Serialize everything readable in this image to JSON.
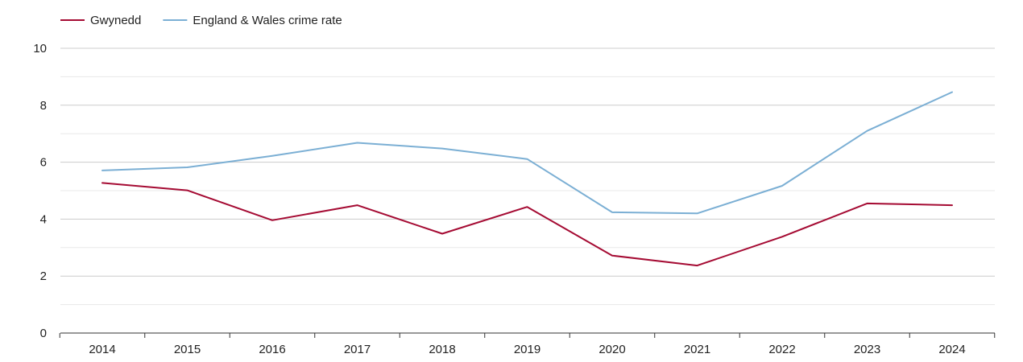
{
  "chart_data": {
    "type": "line",
    "title": "",
    "xlabel": "",
    "ylabel": "",
    "categories": [
      "2014",
      "2015",
      "2016",
      "2017",
      "2018",
      "2019",
      "2020",
      "2021",
      "2022",
      "2023",
      "2024"
    ],
    "ylim": [
      0,
      10
    ],
    "yticks": [
      0,
      2,
      4,
      6,
      8,
      10
    ],
    "grid": true,
    "legend_position": "top-left",
    "series": [
      {
        "name": "Gwynedd",
        "color": "#a50b33",
        "values": [
          5.27,
          5.01,
          3.96,
          4.49,
          3.49,
          4.43,
          2.72,
          2.37,
          3.38,
          4.55,
          4.49
        ]
      },
      {
        "name": "England & Wales crime rate",
        "color": "#7bafd4",
        "values": [
          5.71,
          5.82,
          6.22,
          6.68,
          6.48,
          6.11,
          4.24,
          4.2,
          5.17,
          7.1,
          8.46
        ]
      }
    ]
  }
}
